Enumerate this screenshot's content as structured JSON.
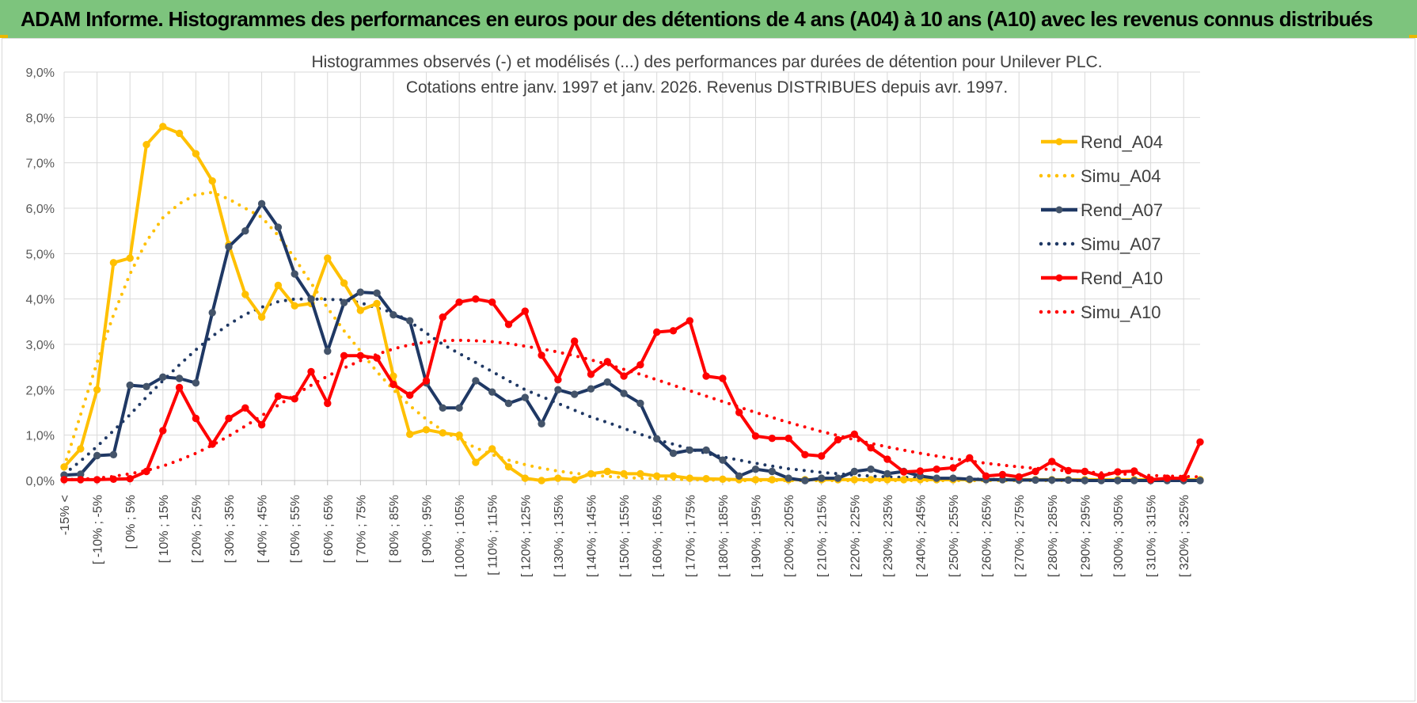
{
  "header": {
    "title": "ADAM Informe. Histogrammes des performances en euros pour des détentions de 4 ans (A04) à 10 ans (A10) avec les revenus connus distribués"
  },
  "chart_data": {
    "type": "line",
    "title_lines": [
      "Histogrammes observés (-) et modélisés (...) des performances par durées de détention pour Unilever PLC.",
      "Cotations entre janv. 1997 et janv. 2026. Revenus DISTRIBUES depuis avr. 1997."
    ],
    "xlabel": "",
    "ylabel": "",
    "ylim": [
      0,
      9
    ],
    "yticks": [
      "0,0%",
      "1,0%",
      "2,0%",
      "3,0%",
      "4,0%",
      "5,0%",
      "6,0%",
      "7,0%",
      "8,0%",
      "9,0%"
    ],
    "grid": true,
    "legend_position": "right",
    "category_count": 70,
    "visible_tick_labels": [
      "-15% <",
      "[ -10% ; -5%",
      "[ 0% ; 5%",
      "[ 10% ; 15%",
      "[ 20% ; 25%",
      "[ 30% ; 35%",
      "[ 40% ; 45%",
      "[ 50% ; 55%",
      "[ 60% ; 65%",
      "[ 70% ; 75%",
      "[ 80% ; 85%",
      "[ 90% ; 95%",
      "[ 100% ; 105%",
      "[ 110% ; 115%",
      "[ 120% ; 125%",
      "[ 130% ; 135%",
      "[ 140% ; 145%",
      "[ 150% ; 155%",
      "[ 160% ; 165%",
      "[ 170% ; 175%",
      "[ 180% ; 185%",
      "[ 190% ; 195%",
      "[ 200% ; 205%",
      "[ 210% ; 215%",
      "[ 220% ; 225%",
      "[ 230% ; 235%",
      "[ 240% ; 245%",
      "[ 250% ; 255%",
      "[ 260% ; 265%",
      "[ 270% ; 275%",
      "[ 280% ; 285%",
      "[ 290% ; 295%",
      "[ 300% ; 305%",
      "[ 310% ; 315%",
      "[ 320% ; 325%"
    ],
    "series": [
      {
        "name": "Rend_A04",
        "color": "#ffc000",
        "style": "solid",
        "markers": true,
        "values": [
          0.3,
          0.7,
          2.0,
          4.8,
          4.9,
          7.4,
          7.8,
          7.65,
          7.2,
          6.6,
          5.2,
          4.1,
          3.6,
          4.3,
          3.85,
          3.9,
          4.9,
          4.35,
          3.75,
          3.9,
          2.3,
          1.02,
          1.12,
          1.05,
          1.0,
          0.4,
          0.7,
          0.3,
          0.05,
          0.0,
          0.05,
          0.02,
          0.15,
          0.2,
          0.15,
          0.15,
          0.1,
          0.1,
          0.05,
          0.04,
          0.03,
          0.02,
          0.02,
          0.02,
          0.02,
          0.02,
          0.02,
          0.02,
          0.02,
          0.02,
          0.02,
          0.02,
          0.02,
          0.02,
          0.02,
          0.02,
          0.02,
          0.02,
          0.02,
          0.02,
          0.02,
          0.02,
          0.02,
          0.02,
          0.02,
          0.02,
          0.02,
          0.02,
          0.02,
          0.02
        ]
      },
      {
        "name": "Simu_A04",
        "color": "#ffc000",
        "style": "dotted",
        "markers": false,
        "values": [
          0.3,
          1.45,
          2.6,
          3.65,
          4.55,
          5.27,
          5.79,
          6.1,
          6.3,
          6.35,
          6.2,
          6.0,
          5.8,
          5.4,
          4.9,
          4.35,
          3.8,
          3.3,
          2.85,
          2.4,
          2.0,
          1.65,
          1.35,
          1.1,
          0.9,
          0.72,
          0.57,
          0.45,
          0.35,
          0.27,
          0.21,
          0.16,
          0.12,
          0.09,
          0.07,
          0.05,
          0.04,
          0.03,
          0.02,
          0.01,
          0.01,
          0.0,
          0.0,
          0.0,
          0.0,
          0.0,
          0.0,
          0.0,
          0.0,
          0.0,
          0.0,
          0.0,
          0.0,
          0.0,
          0.0,
          0.0,
          0.0,
          0.0,
          0.0,
          0.0,
          0.0,
          0.0,
          0.0,
          0.0,
          0.0,
          0.0,
          0.0,
          0.0,
          0.0,
          0.0
        ]
      },
      {
        "name": "Rend_A07",
        "color": "#1f3864",
        "style": "solid",
        "markers": true,
        "values": [
          0.12,
          0.14,
          0.55,
          0.57,
          2.1,
          2.07,
          2.28,
          2.25,
          2.15,
          3.7,
          5.15,
          5.5,
          6.1,
          5.58,
          4.55,
          4.0,
          2.85,
          3.92,
          4.15,
          4.13,
          3.65,
          3.52,
          2.15,
          1.6,
          1.6,
          2.2,
          1.95,
          1.7,
          1.83,
          1.25,
          2.0,
          1.9,
          2.02,
          2.17,
          1.92,
          1.7,
          0.92,
          0.6,
          0.67,
          0.67,
          0.45,
          0.1,
          0.25,
          0.2,
          0.05,
          0.0,
          0.05,
          0.05,
          0.2,
          0.25,
          0.15,
          0.2,
          0.1,
          0.05,
          0.05,
          0.03,
          0.02,
          0.02,
          0.01,
          0.01,
          0.01,
          0.01,
          0.0,
          0.0,
          0.0,
          0.0,
          0.0,
          0.0,
          0.0,
          0.0
        ]
      },
      {
        "name": "Simu_A07",
        "color": "#1f3864",
        "style": "dotted",
        "markers": false,
        "values": [
          0.14,
          0.43,
          0.75,
          1.1,
          1.45,
          1.84,
          2.2,
          2.55,
          2.88,
          3.18,
          3.44,
          3.66,
          3.82,
          3.94,
          4.0,
          4.0,
          3.99,
          3.98,
          3.92,
          3.8,
          3.7,
          3.5,
          3.25,
          3.0,
          2.8,
          2.6,
          2.4,
          2.2,
          2.0,
          1.85,
          1.7,
          1.55,
          1.4,
          1.28,
          1.15,
          1.02,
          0.9,
          0.8,
          0.7,
          0.6,
          0.52,
          0.45,
          0.38,
          0.32,
          0.26,
          0.22,
          0.18,
          0.15,
          0.12,
          0.1,
          0.08,
          0.07,
          0.06,
          0.05,
          0.04,
          0.03,
          0.03,
          0.02,
          0.02,
          0.02,
          0.01,
          0.01,
          0.01,
          0.01,
          0.01,
          0.01,
          0.0,
          0.0,
          0.0,
          0.0
        ]
      },
      {
        "name": "Rend_A10",
        "color": "#ff0000",
        "style": "solid",
        "markers": true,
        "values": [
          0.02,
          0.02,
          0.02,
          0.03,
          0.04,
          0.2,
          1.1,
          2.05,
          1.37,
          0.8,
          1.37,
          1.6,
          1.23,
          1.86,
          1.8,
          2.4,
          1.7,
          2.75,
          2.75,
          2.7,
          2.12,
          1.88,
          2.2,
          3.6,
          3.93,
          4.0,
          3.93,
          3.44,
          3.73,
          2.76,
          2.22,
          3.07,
          2.34,
          2.62,
          2.3,
          2.55,
          3.27,
          3.3,
          3.52,
          2.3,
          2.25,
          1.5,
          0.98,
          0.93,
          0.93,
          0.57,
          0.54,
          0.9,
          1.02,
          0.72,
          0.47,
          0.19,
          0.21,
          0.25,
          0.28,
          0.5,
          0.1,
          0.13,
          0.08,
          0.2,
          0.42,
          0.22,
          0.2,
          0.1,
          0.19,
          0.21,
          0.02,
          0.05,
          0.05,
          0.85
        ]
      },
      {
        "name": "Simu_A10",
        "color": "#ff0000",
        "style": "dotted",
        "markers": false,
        "values": [
          0.02,
          0.03,
          0.05,
          0.09,
          0.15,
          0.22,
          0.32,
          0.45,
          0.6,
          0.78,
          0.98,
          1.2,
          1.43,
          1.66,
          1.88,
          2.1,
          2.3,
          2.48,
          2.64,
          2.78,
          2.9,
          2.99,
          3.05,
          3.08,
          3.09,
          3.08,
          3.06,
          3.02,
          2.96,
          2.9,
          2.83,
          2.75,
          2.66,
          2.56,
          2.45,
          2.34,
          2.22,
          2.1,
          1.98,
          1.86,
          1.74,
          1.62,
          1.5,
          1.39,
          1.28,
          1.18,
          1.08,
          0.99,
          0.9,
          0.82,
          0.74,
          0.67,
          0.6,
          0.54,
          0.48,
          0.43,
          0.38,
          0.34,
          0.3,
          0.27,
          0.24,
          0.21,
          0.19,
          0.17,
          0.15,
          0.13,
          0.11,
          0.1,
          0.09,
          0.08
        ]
      }
    ]
  }
}
